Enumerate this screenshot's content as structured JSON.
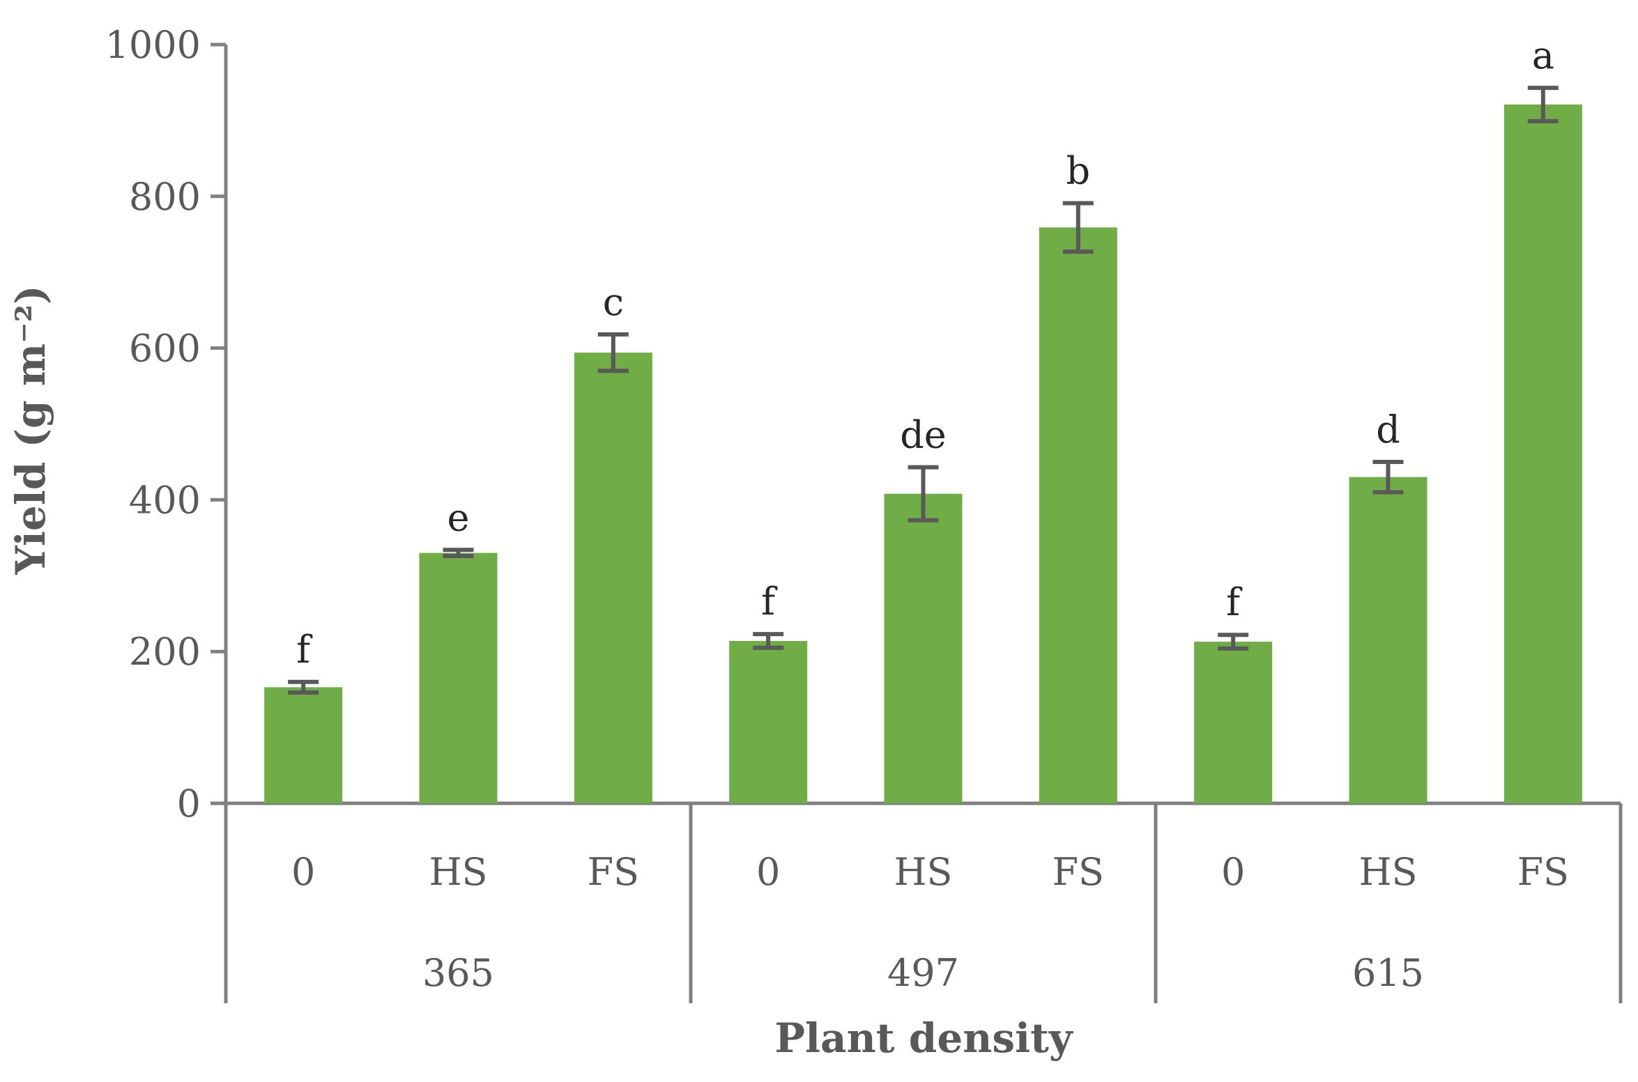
{
  "chart_data": {
    "type": "bar",
    "title": "",
    "ylabel": "Yield (g m⁻²)",
    "xlabel": "Plant density",
    "ylim": [
      0,
      1000
    ],
    "yticks": [
      "0",
      "200",
      "400",
      "600",
      "800",
      "1000"
    ],
    "grid": false,
    "bar_color": "#70AD47",
    "errorbar_color": "#595959",
    "axis_color": "#808080",
    "groups": [
      {
        "label": "365",
        "bars": [
          {
            "category": "0",
            "value": 153,
            "error": 7,
            "letter": "f"
          },
          {
            "category": "HS",
            "value": 330,
            "error": 4,
            "letter": "e"
          },
          {
            "category": "FS",
            "value": 594,
            "error": 24,
            "letter": "c"
          }
        ]
      },
      {
        "label": "497",
        "bars": [
          {
            "category": "0",
            "value": 214,
            "error": 9,
            "letter": "f"
          },
          {
            "category": "HS",
            "value": 408,
            "error": 35,
            "letter": "de"
          },
          {
            "category": "FS",
            "value": 759,
            "error": 32,
            "letter": "b"
          }
        ]
      },
      {
        "label": "615",
        "bars": [
          {
            "category": "0",
            "value": 213,
            "error": 9,
            "letter": "f"
          },
          {
            "category": "HS",
            "value": 430,
            "error": 20,
            "letter": "d"
          },
          {
            "category": "FS",
            "value": 921,
            "error": 22,
            "letter": "a"
          }
        ]
      }
    ]
  }
}
